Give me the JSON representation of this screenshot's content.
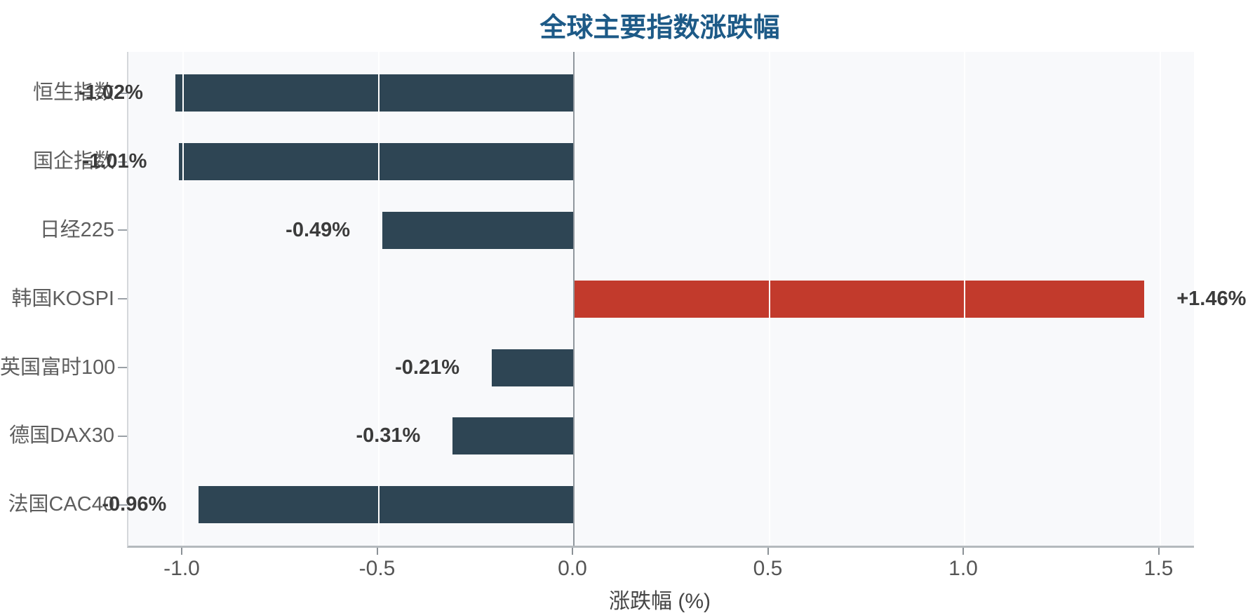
{
  "title": "全球主要指数涨跌幅",
  "x_axis_label": "涨跌幅 (%)",
  "chart_data": {
    "type": "bar",
    "orientation": "horizontal",
    "title": "全球主要指数涨跌幅",
    "xlabel": "涨跌幅 (%)",
    "ylabel": "",
    "categories": [
      "恒生指数",
      "国企指数",
      "日经225",
      "韩国KOSPI",
      "英国富时100",
      "德国DAX30",
      "法国CAC40"
    ],
    "values": [
      -1.02,
      -1.01,
      -0.49,
      1.46,
      -0.21,
      -0.31,
      -0.96
    ],
    "value_labels": [
      "-1.02%",
      "-1.01%",
      "-0.49%",
      "+1.46%",
      "-0.21%",
      "-0.31%",
      "-0.96%"
    ],
    "xlim": [
      -1.14,
      1.59
    ],
    "xticks": [
      -1.0,
      -0.5,
      0.0,
      0.5,
      1.0,
      1.5
    ],
    "xtick_labels": [
      "-1.0",
      "-0.5",
      "0.0",
      "0.5",
      "1.0",
      "1.5"
    ],
    "grid": true,
    "legend": "none",
    "colors": {
      "negative_bar": "#2e4554",
      "positive_bar": "#c23a2c",
      "title": "#1d5a87",
      "plot_background": "#f8f9fb",
      "gridline": "#ffffff",
      "zero_line": "#90979d"
    }
  }
}
